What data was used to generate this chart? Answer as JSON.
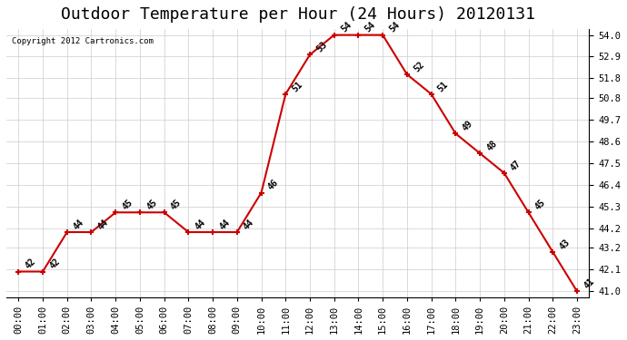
{
  "title": "Outdoor Temperature per Hour (24 Hours) 20120131",
  "copyright_text": "Copyright 2012 Cartronics.com",
  "hours": [
    "00:00",
    "01:00",
    "02:00",
    "03:00",
    "04:00",
    "05:00",
    "06:00",
    "07:00",
    "08:00",
    "09:00",
    "10:00",
    "11:00",
    "12:00",
    "13:00",
    "14:00",
    "15:00",
    "16:00",
    "17:00",
    "18:00",
    "19:00",
    "20:00",
    "21:00",
    "22:00",
    "23:00"
  ],
  "temperatures": [
    42,
    42,
    44,
    44,
    45,
    45,
    45,
    44,
    44,
    44,
    46,
    51,
    53,
    54,
    54,
    54,
    52,
    51,
    49,
    48,
    47,
    45,
    43,
    41
  ],
  "line_color": "#cc0000",
  "marker": "+",
  "marker_color": "#cc0000",
  "grid_color": "#cccccc",
  "background_color": "#ffffff",
  "ylabel_right": true,
  "yticks": [
    41.0,
    42.1,
    43.2,
    44.2,
    45.3,
    46.4,
    47.5,
    48.6,
    49.7,
    50.8,
    51.8,
    52.9,
    54.0
  ],
  "ylim": [
    40.7,
    54.3
  ],
  "title_fontsize": 13,
  "label_fontsize": 7.5,
  "annot_fontsize": 7
}
